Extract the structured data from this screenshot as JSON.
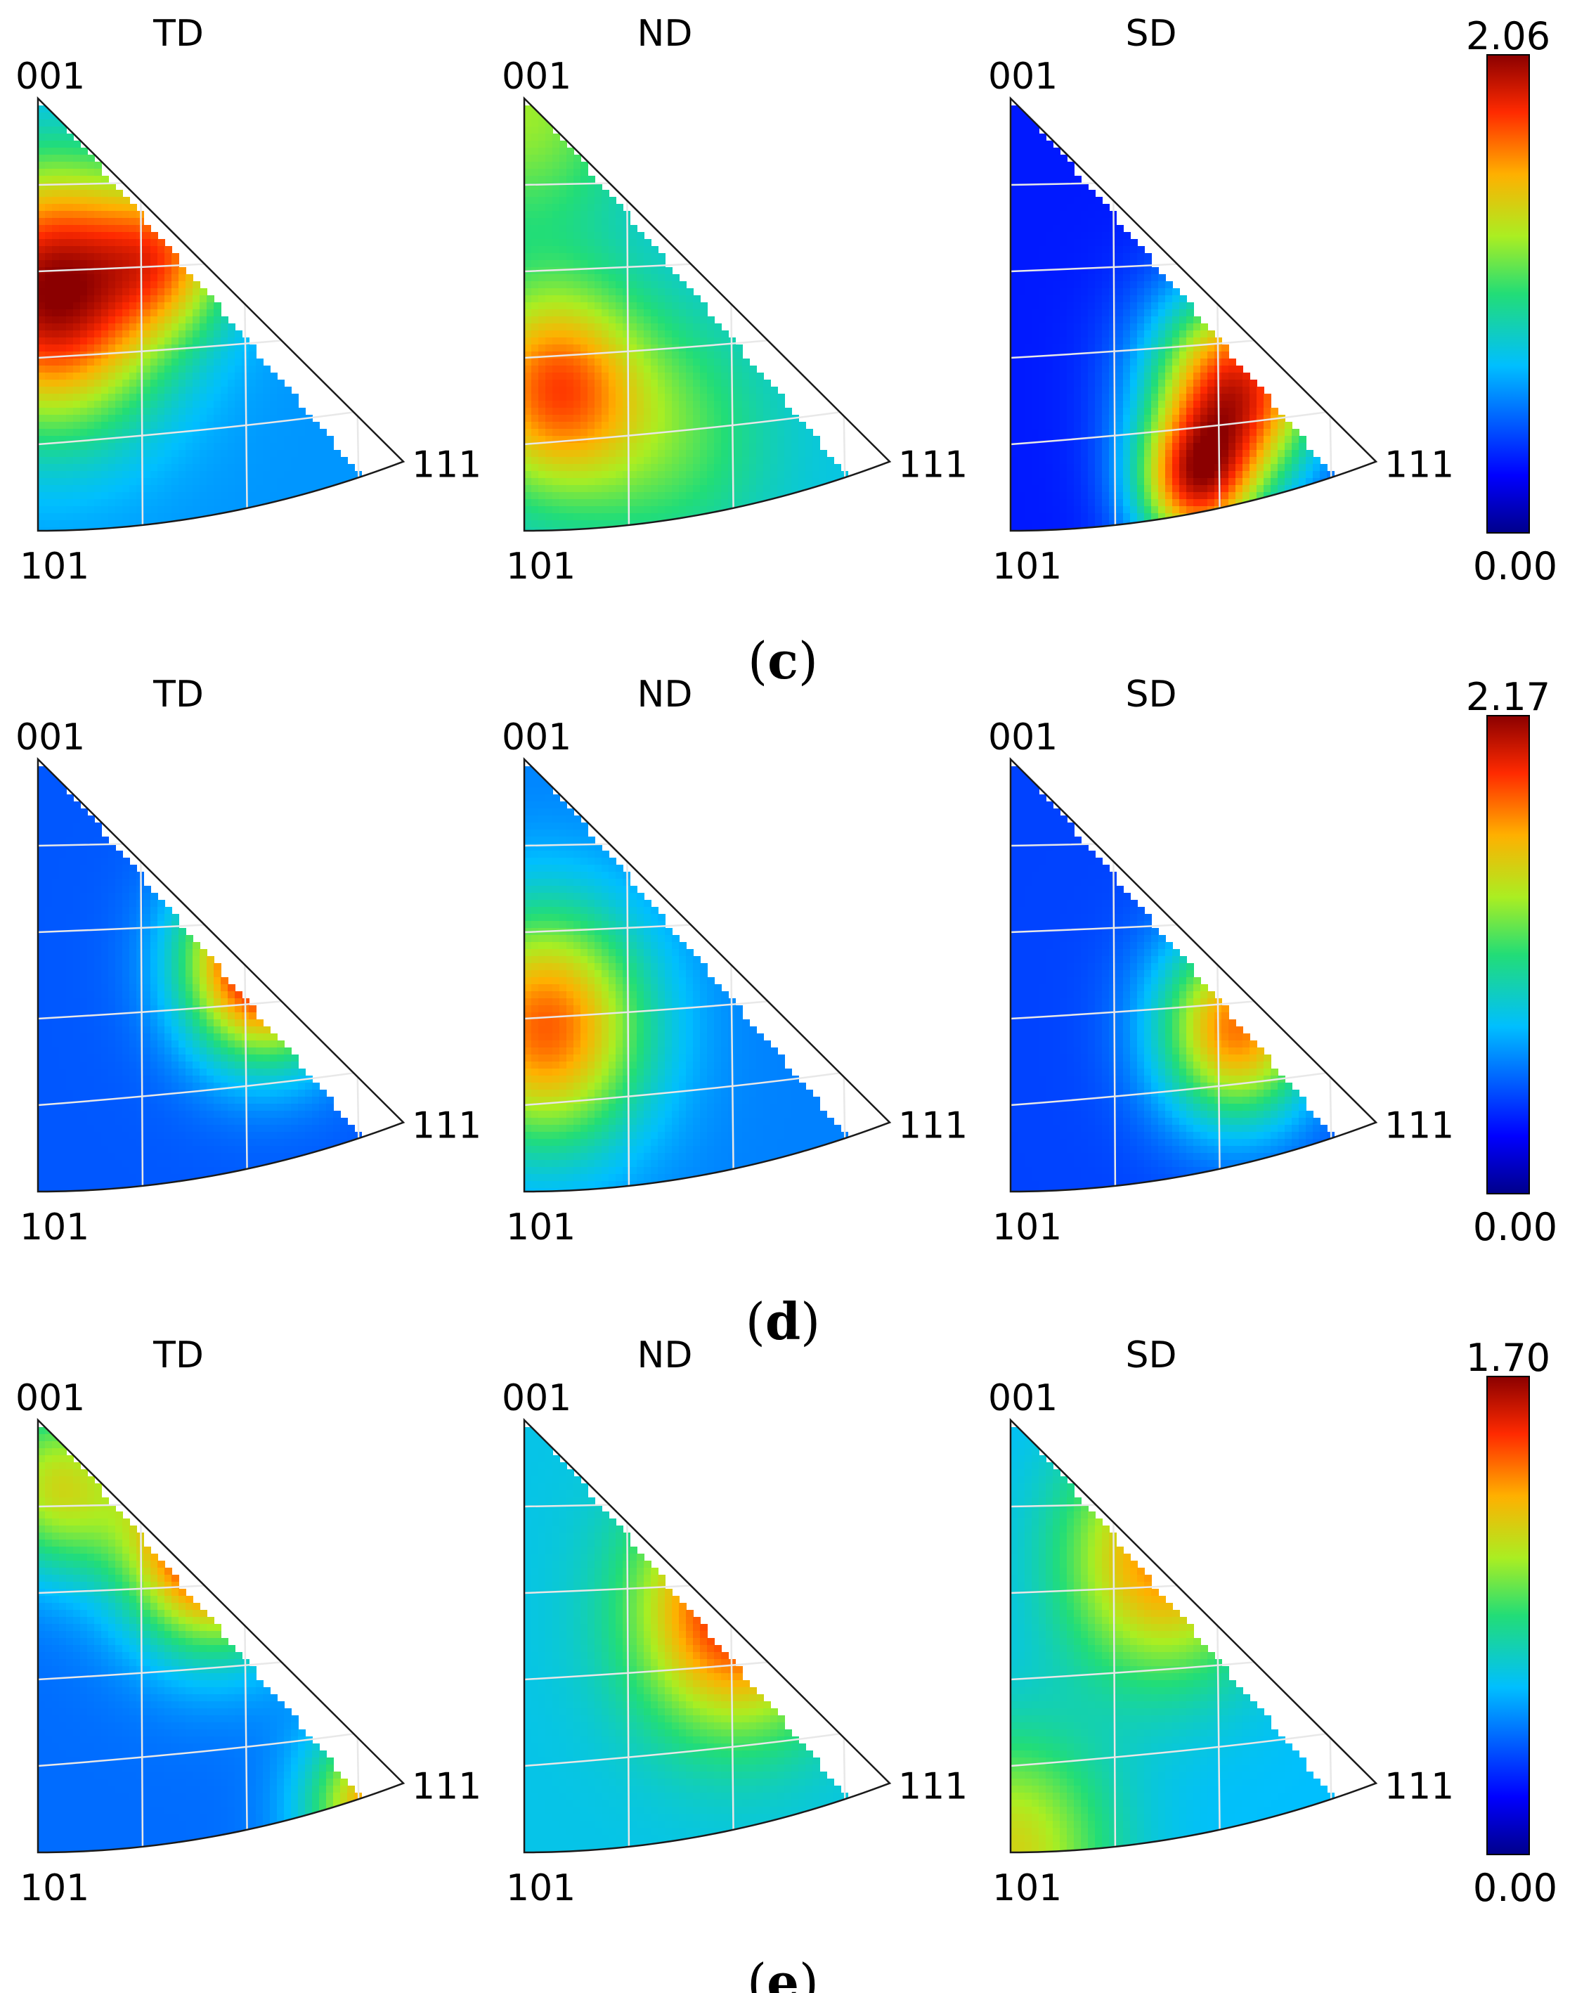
{
  "panels": [
    {
      "label": "c",
      "colorbar": {
        "max": "2.06",
        "min": "0.00"
      },
      "plots": [
        {
          "direction": "TD",
          "corners": [
            "001",
            "101",
            "111"
          ],
          "hotspots": [
            {
              "u": 0.04,
              "v": 0.55,
              "val": 2.06,
              "r": 0.33
            },
            {
              "u": 0.36,
              "v": 0.64,
              "val": 1.3,
              "r": 0.2
            }
          ],
          "base": 0.6
        },
        {
          "direction": "ND",
          "corners": [
            "001",
            "101",
            "111"
          ],
          "hotspots": [
            {
              "u": 0.08,
              "v": 0.33,
              "val": 1.7,
              "r": 0.26
            },
            {
              "u": 0.0,
              "v": 0.97,
              "val": 1.25,
              "r": 0.3
            },
            {
              "u": 0.4,
              "v": 0.22,
              "val": 1.1,
              "r": 0.3
            }
          ],
          "base": 0.75
        },
        {
          "direction": "SD",
          "corners": [
            "001",
            "101",
            "111"
          ],
          "hotspots": [
            {
              "u": 0.62,
              "v": 0.33,
              "val": 1.85,
              "r": 0.26
            },
            {
              "u": 0.5,
              "v": 0.1,
              "val": 1.5,
              "r": 0.18
            }
          ],
          "base": 0.3
        }
      ]
    },
    {
      "label": "d",
      "colorbar": {
        "max": "2.17",
        "min": "0.00"
      },
      "plots": [
        {
          "direction": "TD",
          "corners": [
            "001",
            "101",
            "111"
          ],
          "hotspots": [
            {
              "u": 0.62,
              "v": 0.53,
              "val": 2.17,
              "r": 0.24
            }
          ],
          "base": 0.45
        },
        {
          "direction": "ND",
          "corners": [
            "001",
            "101",
            "111"
          ],
          "hotspots": [
            {
              "u": 0.06,
              "v": 0.38,
              "val": 1.8,
              "r": 0.3
            }
          ],
          "base": 0.55
        },
        {
          "direction": "SD",
          "corners": [
            "001",
            "101",
            "111"
          ],
          "hotspots": [
            {
              "u": 0.62,
              "v": 0.38,
              "val": 1.75,
              "r": 0.24
            }
          ],
          "base": 0.4
        }
      ]
    },
    {
      "label": "e",
      "colorbar": {
        "max": "1.70",
        "min": "0.00"
      },
      "plots": [
        {
          "direction": "TD",
          "corners": [
            "001",
            "101",
            "111"
          ],
          "hotspots": [
            {
              "u": 0.48,
              "v": 0.72,
              "val": 1.7,
              "r": 0.26
            },
            {
              "u": 0.95,
              "v": 0.1,
              "val": 1.4,
              "r": 0.22
            },
            {
              "u": 0.05,
              "v": 0.85,
              "val": 1.1,
              "r": 0.22
            }
          ],
          "base": 0.5
        },
        {
          "direction": "ND",
          "corners": [
            "001",
            "101",
            "111"
          ],
          "hotspots": [
            {
              "u": 0.58,
              "v": 0.56,
              "val": 1.55,
              "r": 0.3
            }
          ],
          "base": 0.75
        },
        {
          "direction": "SD",
          "corners": [
            "001",
            "101",
            "111"
          ],
          "hotspots": [
            {
              "u": 0.42,
              "v": 0.68,
              "val": 1.35,
              "r": 0.3
            },
            {
              "u": 0.0,
              "v": 0.0,
              "val": 1.15,
              "r": 0.3
            }
          ],
          "base": 0.7
        }
      ]
    }
  ]
}
